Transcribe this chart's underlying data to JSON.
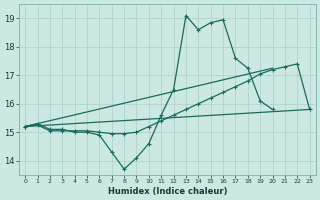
{
  "xlabel": "Humidex (Indice chaleur)",
  "xlim": [
    -0.5,
    23.5
  ],
  "ylim": [
    13.5,
    19.5
  ],
  "xtick_labels": [
    "0",
    "1",
    "2",
    "3",
    "4",
    "5",
    "6",
    "7",
    "8",
    "9",
    "10",
    "11",
    "12",
    "13",
    "14",
    "15",
    "16",
    "17",
    "18",
    "19",
    "20",
    "21",
    "22",
    "23"
  ],
  "yticks": [
    14,
    15,
    16,
    17,
    18,
    19
  ],
  "bg_color": "#cce8e3",
  "grid_color": "#aacfca",
  "line_color": "#1a6b5a",
  "line1": {
    "x": [
      0,
      1,
      2,
      3,
      4,
      5,
      6,
      7,
      8,
      9,
      10,
      11,
      12,
      13,
      14,
      15,
      16,
      17,
      18,
      19,
      20
    ],
    "y": [
      15.2,
      15.3,
      15.1,
      15.1,
      15.0,
      15.0,
      14.9,
      14.3,
      13.7,
      14.1,
      14.6,
      15.6,
      16.5,
      19.1,
      18.6,
      18.85,
      18.95,
      17.6,
      17.25,
      16.1,
      15.8
    ]
  },
  "line2": {
    "x": [
      0,
      1,
      2,
      3,
      4,
      5,
      6,
      7,
      8,
      9,
      10,
      11,
      12,
      13,
      14,
      15,
      16,
      17,
      18,
      19,
      20,
      21,
      22,
      23
    ],
    "y": [
      15.2,
      15.25,
      15.05,
      15.05,
      15.05,
      15.05,
      15.0,
      14.95,
      14.95,
      15.0,
      15.2,
      15.4,
      15.6,
      15.8,
      16.0,
      16.2,
      16.4,
      16.6,
      16.8,
      17.05,
      17.2,
      17.3,
      17.4,
      15.8
    ]
  },
  "line3_x": [
    0,
    23
  ],
  "line3_y": [
    15.2,
    15.8
  ],
  "line4_x": [
    0,
    20
  ],
  "line4_y": [
    15.2,
    17.25
  ]
}
